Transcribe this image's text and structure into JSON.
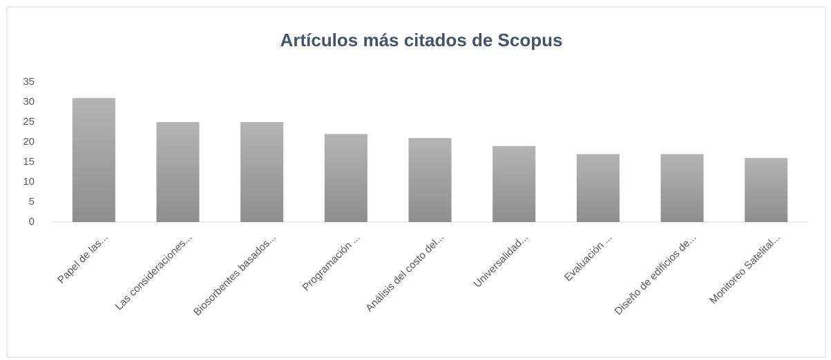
{
  "chart_data": {
    "type": "bar",
    "title": "Artículos más citados de Scopus",
    "categories": [
      "Papel de las...",
      "Las consideraciones...",
      "Biosorbentes basados...",
      "Programación ...",
      "Análisis del costo del...",
      "Universalidad...",
      "Evaluación ...",
      "Diseño de edificios de...",
      "Monitoreo Satelital..."
    ],
    "values": [
      31,
      25,
      25,
      22,
      21,
      19,
      17,
      17,
      16
    ],
    "color": "#a6a6a6",
    "ylim": [
      0,
      35
    ],
    "yticks": [
      0,
      5,
      10,
      15,
      20,
      25,
      30,
      35
    ],
    "grid": false
  }
}
